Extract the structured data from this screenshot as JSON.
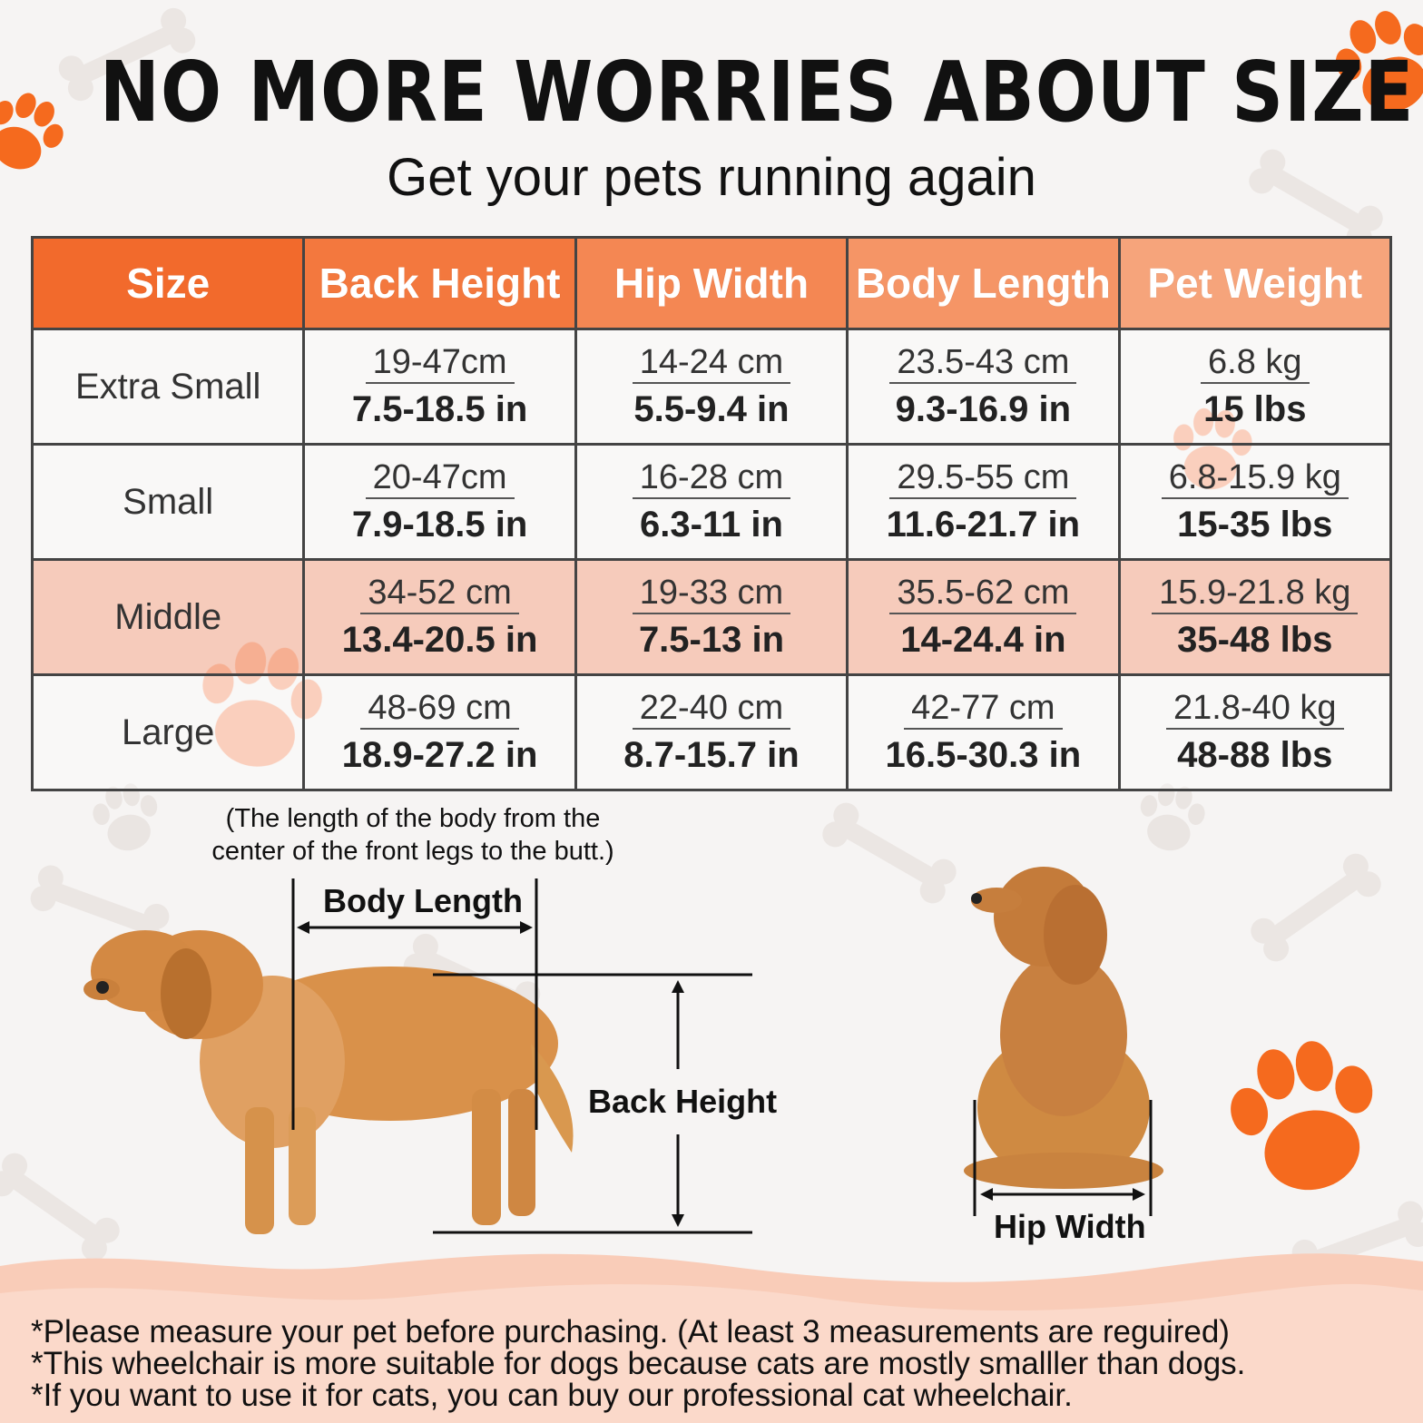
{
  "header": {
    "title": "NO MORE WORRIES ABOUT SIZE",
    "subtitle": "Get your pets running again"
  },
  "table": {
    "headers": [
      "Size",
      "Back Height",
      "Hip Width",
      "Body Length",
      "Pet Weight"
    ],
    "rows": [
      {
        "size": "Extra Small",
        "back_height": {
          "metric": "19-47cm",
          "imperial": "7.5-18.5 in"
        },
        "hip_width": {
          "metric": "14-24 cm",
          "imperial": "5.5-9.4 in"
        },
        "body_length": {
          "metric": "23.5-43 cm",
          "imperial": "9.3-16.9 in"
        },
        "pet_weight": {
          "metric": "6.8 kg",
          "imperial": "15 lbs"
        }
      },
      {
        "size": "Small",
        "back_height": {
          "metric": "20-47cm",
          "imperial": "7.9-18.5 in"
        },
        "hip_width": {
          "metric": "16-28 cm",
          "imperial": "6.3-11 in"
        },
        "body_length": {
          "metric": "29.5-55 cm",
          "imperial": "11.6-21.7 in"
        },
        "pet_weight": {
          "metric": "6.8-15.9 kg",
          "imperial": "15-35 lbs"
        }
      },
      {
        "size": "Middle",
        "back_height": {
          "metric": "34-52 cm",
          "imperial": "13.4-20.5 in"
        },
        "hip_width": {
          "metric": "19-33 cm",
          "imperial": "7.5-13 in"
        },
        "body_length": {
          "metric": "35.5-62 cm",
          "imperial": "14-24.4 in"
        },
        "pet_weight": {
          "metric": "15.9-21.8 kg",
          "imperial": "35-48 lbs"
        }
      },
      {
        "size": "Large",
        "back_height": {
          "metric": "48-69 cm",
          "imperial": "18.9-27.2 in"
        },
        "hip_width": {
          "metric": "22-40 cm",
          "imperial": "8.7-15.7 in"
        },
        "body_length": {
          "metric": "42-77 cm",
          "imperial": "16.5-30.3 in"
        },
        "pet_weight": {
          "metric": "21.8-40 kg",
          "imperial": "48-88 lbs"
        }
      }
    ]
  },
  "diagram": {
    "body_length_note_line1": "(The length of the body from the",
    "body_length_note_line2": "center of the front legs to the butt.)",
    "body_length_label": "Body Length",
    "back_height_label": "Back Height",
    "hip_width_label": "Hip Width"
  },
  "footer": {
    "line1": "*Please measure your pet before purchasing. (At least 3 measurements are reguired)",
    "line2": "*This wheelchair is more suitable for dogs because cats are mostly smalller than dogs.",
    "line3": "*If you want to use it for cats, you can buy our professional cat wheelchair."
  },
  "colors": {
    "accent": "#f26a2c",
    "paw": "#f56a1e",
    "highlight_row": "#f5b9a0"
  },
  "icons": [
    "paw-print-icon",
    "bone-icon"
  ]
}
